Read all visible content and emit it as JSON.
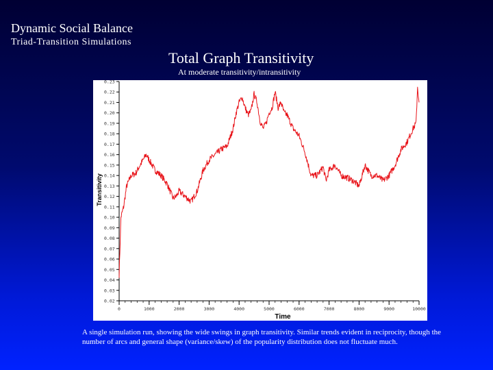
{
  "slide": {
    "title": "Dynamic Social Balance",
    "subtitle": "Triad-Transition Simulations",
    "caption": "A single simulation run, showing the wide swings in graph transitivity.  Similar trends evident in reciprocity, though the number of arcs and general shape (variance/skew) of the popularity distribution does not fluctuate much."
  },
  "chart_data": {
    "type": "line",
    "title": "Total Graph Transitivity",
    "subtitle": "At moderate transitivity/intransitivity",
    "xlabel": "Time",
    "ylabel": "Transitivity",
    "xlim": [
      0,
      10000
    ],
    "ylim": [
      0.02,
      0.23
    ],
    "xticks": [
      0,
      1000,
      2000,
      3000,
      4000,
      5000,
      6000,
      7000,
      8000,
      9000,
      10000
    ],
    "yticks": [
      0.02,
      0.03,
      0.04,
      0.05,
      0.06,
      0.07,
      0.08,
      0.09,
      0.1,
      0.11,
      0.12,
      0.13,
      0.14,
      0.15,
      0.16,
      0.17,
      0.18,
      0.19,
      0.2,
      0.21,
      0.22,
      0.23
    ],
    "grid": false,
    "line_color": "#e8141a",
    "series": [
      {
        "x": [
          0,
          60,
          150,
          250,
          400,
          550,
          700,
          800,
          900,
          1000,
          1200,
          1400,
          1600,
          1700,
          1800,
          1900,
          2000,
          2200,
          2400,
          2600,
          2800,
          3000,
          3200,
          3400,
          3600,
          3800,
          3900,
          4000,
          4100,
          4200,
          4300,
          4400,
          4500,
          4600,
          4700,
          4800,
          4900,
          5000,
          5100,
          5200,
          5300,
          5400,
          5500,
          5600,
          5800,
          6000,
          6200,
          6400,
          6600,
          6800,
          6900,
          7000,
          7200,
          7400,
          7600,
          7800,
          8000,
          8200,
          8400,
          8600,
          8800,
          9000,
          9200,
          9400,
          9600,
          9800,
          9900,
          9950,
          10000
        ],
        "y": [
          0.045,
          0.1,
          0.11,
          0.13,
          0.14,
          0.142,
          0.15,
          0.155,
          0.16,
          0.155,
          0.145,
          0.14,
          0.132,
          0.125,
          0.118,
          0.12,
          0.125,
          0.12,
          0.115,
          0.125,
          0.145,
          0.155,
          0.16,
          0.165,
          0.168,
          0.185,
          0.2,
          0.21,
          0.215,
          0.205,
          0.198,
          0.202,
          0.218,
          0.21,
          0.192,
          0.185,
          0.19,
          0.2,
          0.205,
          0.22,
          0.205,
          0.21,
          0.2,
          0.198,
          0.185,
          0.178,
          0.162,
          0.14,
          0.14,
          0.148,
          0.135,
          0.145,
          0.15,
          0.14,
          0.138,
          0.135,
          0.13,
          0.15,
          0.14,
          0.14,
          0.135,
          0.14,
          0.15,
          0.165,
          0.172,
          0.185,
          0.19,
          0.225,
          0.21
        ]
      }
    ]
  }
}
